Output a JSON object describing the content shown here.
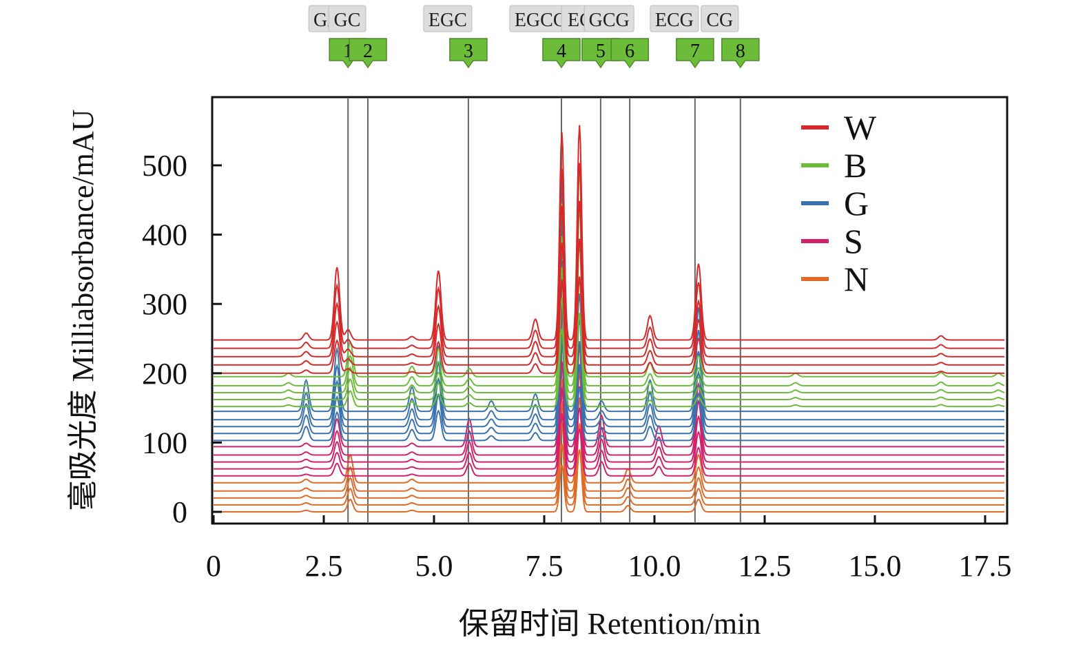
{
  "chart_data": {
    "type": "line",
    "title": "",
    "xlabel": "保留时间 Retention/min",
    "ylabel": "毫吸光度 Milliabsorbance/mAU",
    "xlim": [
      0,
      18
    ],
    "ylim": [
      -15,
      600
    ],
    "xticks": [
      "0",
      "2.5",
      "5.0",
      "7.5",
      "10.0",
      "12.5",
      "15.0",
      "17.5"
    ],
    "xtick_values": [
      0,
      2.5,
      5,
      7.5,
      10,
      12.5,
      15,
      17.5
    ],
    "yticks": [
      "0",
      "100",
      "200",
      "300",
      "400",
      "500"
    ],
    "ytick_values": [
      0,
      100,
      200,
      300,
      400,
      500
    ],
    "legend_position": "top-right",
    "markers": [
      {
        "compound": "GA",
        "number": "1",
        "time": 3.05
      },
      {
        "compound": "GC",
        "number": "2",
        "time": 3.5
      },
      {
        "compound": "EGC",
        "number": "3",
        "time": 5.78
      },
      {
        "compound": "EGCG",
        "number": "4",
        "time": 7.89
      },
      {
        "compound": "EC",
        "number": "5",
        "time": 8.78
      },
      {
        "compound": "GCG",
        "number": "6",
        "time": 9.44
      },
      {
        "compound": "ECG",
        "number": "7",
        "time": 10.92
      },
      {
        "compound": "CG",
        "number": "8",
        "time": 11.95
      }
    ],
    "series": [
      {
        "name": "W",
        "color": "#d62a2a",
        "offsets": [
          200,
          212,
          224,
          236,
          248
        ],
        "peaks": [
          [
            2.1,
            10
          ],
          [
            2.8,
            105
          ],
          [
            3.05,
            15
          ],
          [
            4.5,
            5
          ],
          [
            5.1,
            100
          ],
          [
            7.3,
            30
          ],
          [
            7.9,
            300
          ],
          [
            8.3,
            310
          ],
          [
            9.9,
            35
          ],
          [
            11.0,
            110
          ],
          [
            16.5,
            6
          ]
        ]
      },
      {
        "name": "B",
        "color": "#6cbc3a",
        "offsets": [
          152,
          162,
          172,
          182,
          195
        ],
        "peaks": [
          [
            1.7,
            5
          ],
          [
            3.1,
            50
          ],
          [
            4.5,
            15
          ],
          [
            5.1,
            40
          ],
          [
            5.8,
            12
          ],
          [
            7.9,
            250
          ],
          [
            8.3,
            300
          ],
          [
            9.9,
            20
          ],
          [
            11.0,
            30
          ],
          [
            13.2,
            5
          ],
          [
            16.5,
            6
          ],
          [
            17.8,
            5
          ]
        ]
      },
      {
        "name": "G",
        "color": "#3a72b0",
        "offsets": [
          103,
          113,
          123,
          133,
          145
        ],
        "peaks": [
          [
            2.1,
            45
          ],
          [
            2.8,
            90
          ],
          [
            4.5,
            35
          ],
          [
            5.1,
            95
          ],
          [
            6.3,
            15
          ],
          [
            7.3,
            25
          ],
          [
            7.9,
            330
          ],
          [
            8.3,
            170
          ],
          [
            8.8,
            15
          ],
          [
            9.9,
            45
          ],
          [
            11.0,
            150
          ]
        ]
      },
      {
        "name": "S",
        "color": "#d3206a",
        "offsets": [
          52,
          62,
          72,
          82,
          94
        ],
        "peaks": [
          [
            2.1,
            5
          ],
          [
            2.8,
            40
          ],
          [
            4.5,
            5
          ],
          [
            5.8,
            40
          ],
          [
            7.9,
            200
          ],
          [
            8.3,
            150
          ],
          [
            8.8,
            45
          ],
          [
            10.1,
            30
          ],
          [
            11.0,
            90
          ]
        ]
      },
      {
        "name": "N",
        "color": "#e06a28",
        "offsets": [
          0,
          10,
          20,
          30,
          42
        ],
        "peaks": [
          [
            2.1,
            5
          ],
          [
            3.1,
            40
          ],
          [
            4.5,
            5
          ],
          [
            7.9,
            150
          ],
          [
            8.3,
            200
          ],
          [
            9.4,
            20
          ],
          [
            11.0,
            40
          ]
        ]
      }
    ]
  }
}
